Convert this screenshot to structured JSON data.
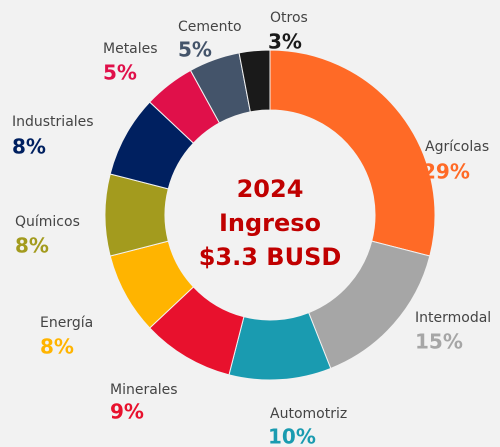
{
  "chart_data": {
    "type": "donut",
    "categories": [
      "Agrícolas",
      "Intermodal",
      "Automotriz",
      "Minerales",
      "Energía",
      "Químicos",
      "Industriales",
      "Metales",
      "Cemento",
      "Otros"
    ],
    "values": [
      29,
      15,
      10,
      9,
      8,
      8,
      8,
      5,
      5,
      3
    ],
    "value_labels": [
      "29%",
      "15%",
      "10%",
      "9%",
      "8%",
      "8%",
      "8%",
      "5%",
      "5%",
      "3%"
    ],
    "colors": [
      "#ff6a26",
      "#a6a6a6",
      "#1a9bb0",
      "#e8112d",
      "#ffb400",
      "#a39b1e",
      "#002060",
      "#e0104a",
      "#44546a",
      "#1a1a1a"
    ],
    "center_text": [
      "2024",
      "Ingreso",
      "$3.3 BUSD"
    ]
  }
}
